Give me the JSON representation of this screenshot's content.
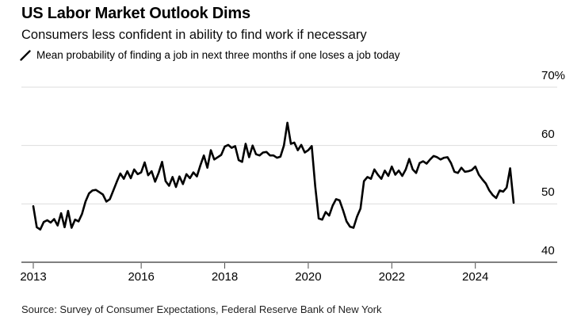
{
  "header": {
    "title": "US Labor Market Outlook Dims",
    "subtitle": "Consumers less confident in ability to find work if necessary"
  },
  "legend": {
    "marker_icon": "line-slash",
    "label": "Mean probability of finding a job in next three months if one loses a job today",
    "color": "#000000"
  },
  "source_line": "Source: Survey of Consumer Expectations, Federal Reserve Bank of New York",
  "colors": {
    "line": "#000000",
    "gridline": "#dddddd",
    "axis": "#7f7f7f",
    "tick": "#4d4d4d",
    "background": "#ffffff"
  },
  "chart_data": {
    "type": "line",
    "title": "US Labor Market Outlook Dims",
    "subtitle": "Consumers less confident in ability to find work if necessary",
    "series_name": "Mean probability of finding a job in next three months if one loses a job today",
    "frequency": "monthly",
    "x_start": "2013-06",
    "x_end": "2024-12",
    "ylim": [
      40,
      70
    ],
    "grid": true,
    "legend_position": "top-left",
    "y_axis_side": "right",
    "values": [
      49.6,
      46.0,
      45.6,
      46.9,
      47.2,
      46.8,
      47.4,
      46.3,
      48.4,
      46.0,
      48.8,
      45.9,
      47.3,
      47.0,
      48.3,
      50.4,
      51.8,
      52.3,
      52.4,
      52.0,
      51.6,
      50.4,
      50.8,
      52.3,
      53.8,
      55.2,
      54.3,
      55.6,
      54.4,
      55.9,
      55.1,
      55.4,
      57.1,
      54.9,
      55.6,
      53.8,
      55.3,
      57.2,
      53.9,
      53.1,
      54.6,
      52.9,
      54.7,
      53.4,
      55.1,
      54.4,
      55.4,
      54.7,
      56.6,
      58.3,
      56.2,
      59.2,
      57.6,
      58.0,
      58.4,
      59.8,
      60.1,
      59.6,
      59.9,
      57.5,
      57.2,
      60.3,
      58.0,
      60.0,
      58.5,
      58.3,
      58.8,
      58.9,
      58.3,
      58.3,
      57.9,
      58.1,
      60.0,
      63.9,
      60.3,
      60.5,
      59.2,
      60.1,
      58.8,
      59.2,
      59.9,
      53.0,
      47.5,
      47.3,
      48.6,
      48.0,
      49.7,
      50.8,
      50.6,
      48.9,
      47.0,
      46.1,
      45.9,
      47.8,
      49.2,
      53.9,
      54.6,
      54.3,
      55.9,
      55.0,
      54.3,
      55.7,
      54.8,
      56.4,
      55.0,
      55.7,
      54.8,
      55.9,
      57.7,
      55.9,
      55.3,
      57.0,
      57.3,
      56.9,
      57.6,
      58.2,
      58.0,
      57.6,
      57.9,
      58.0,
      57.0,
      55.5,
      55.3,
      56.2,
      55.5,
      55.6,
      55.8,
      56.4,
      55.0,
      54.2,
      53.5,
      52.3,
      51.5,
      51.0,
      52.3,
      52.1,
      52.8,
      56.1,
      50.2
    ],
    "y_ticks": [
      {
        "label": "70%",
        "value": 70
      },
      {
        "label": "60",
        "value": 60
      },
      {
        "label": "50",
        "value": 50
      },
      {
        "label": "40",
        "value": 40
      }
    ],
    "x_ticks": [
      {
        "label": "2013",
        "month_index": 0
      },
      {
        "label": "2016",
        "month_index": 31
      },
      {
        "label": "2018",
        "month_index": 55
      },
      {
        "label": "2020",
        "month_index": 79
      },
      {
        "label": "2022",
        "month_index": 103
      },
      {
        "label": "2024",
        "month_index": 127
      }
    ]
  }
}
